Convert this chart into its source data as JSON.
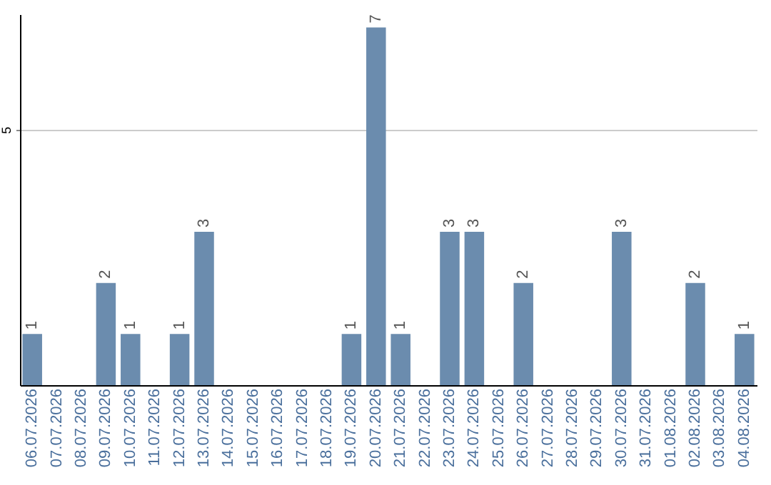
{
  "chart_data": {
    "type": "bar",
    "categories": [
      "06.07.2026",
      "07.07.2026",
      "08.07.2026",
      "09.07.2026",
      "10.07.2026",
      "11.07.2026",
      "12.07.2026",
      "13.07.2026",
      "14.07.2026",
      "15.07.2026",
      "16.07.2026",
      "17.07.2026",
      "18.07.2026",
      "19.07.2026",
      "20.07.2026",
      "21.07.2026",
      "22.07.2026",
      "23.07.2026",
      "24.07.2026",
      "25.07.2026",
      "26.07.2026",
      "27.07.2026",
      "28.07.2026",
      "29.07.2026",
      "30.07.2026",
      "31.07.2026",
      "01.08.2026",
      "02.08.2026",
      "03.08.2026",
      "04.08.2026"
    ],
    "values": [
      1,
      0,
      0,
      2,
      1,
      0,
      1,
      3,
      0,
      0,
      0,
      0,
      0,
      1,
      7,
      1,
      0,
      3,
      3,
      0,
      2,
      0,
      0,
      0,
      3,
      0,
      0,
      2,
      0,
      1
    ],
    "value_labels": [
      "1",
      null,
      null,
      "2",
      "1",
      null,
      "1",
      "3",
      null,
      null,
      null,
      null,
      null,
      "1",
      "7",
      "1",
      null,
      "3",
      "3",
      null,
      "2",
      null,
      null,
      null,
      "3",
      null,
      null,
      "2",
      null,
      "1"
    ],
    "color": "#6b8cae",
    "ylim": [
      0,
      7.26
    ],
    "yticks": [
      5
    ],
    "grid": "y"
  }
}
